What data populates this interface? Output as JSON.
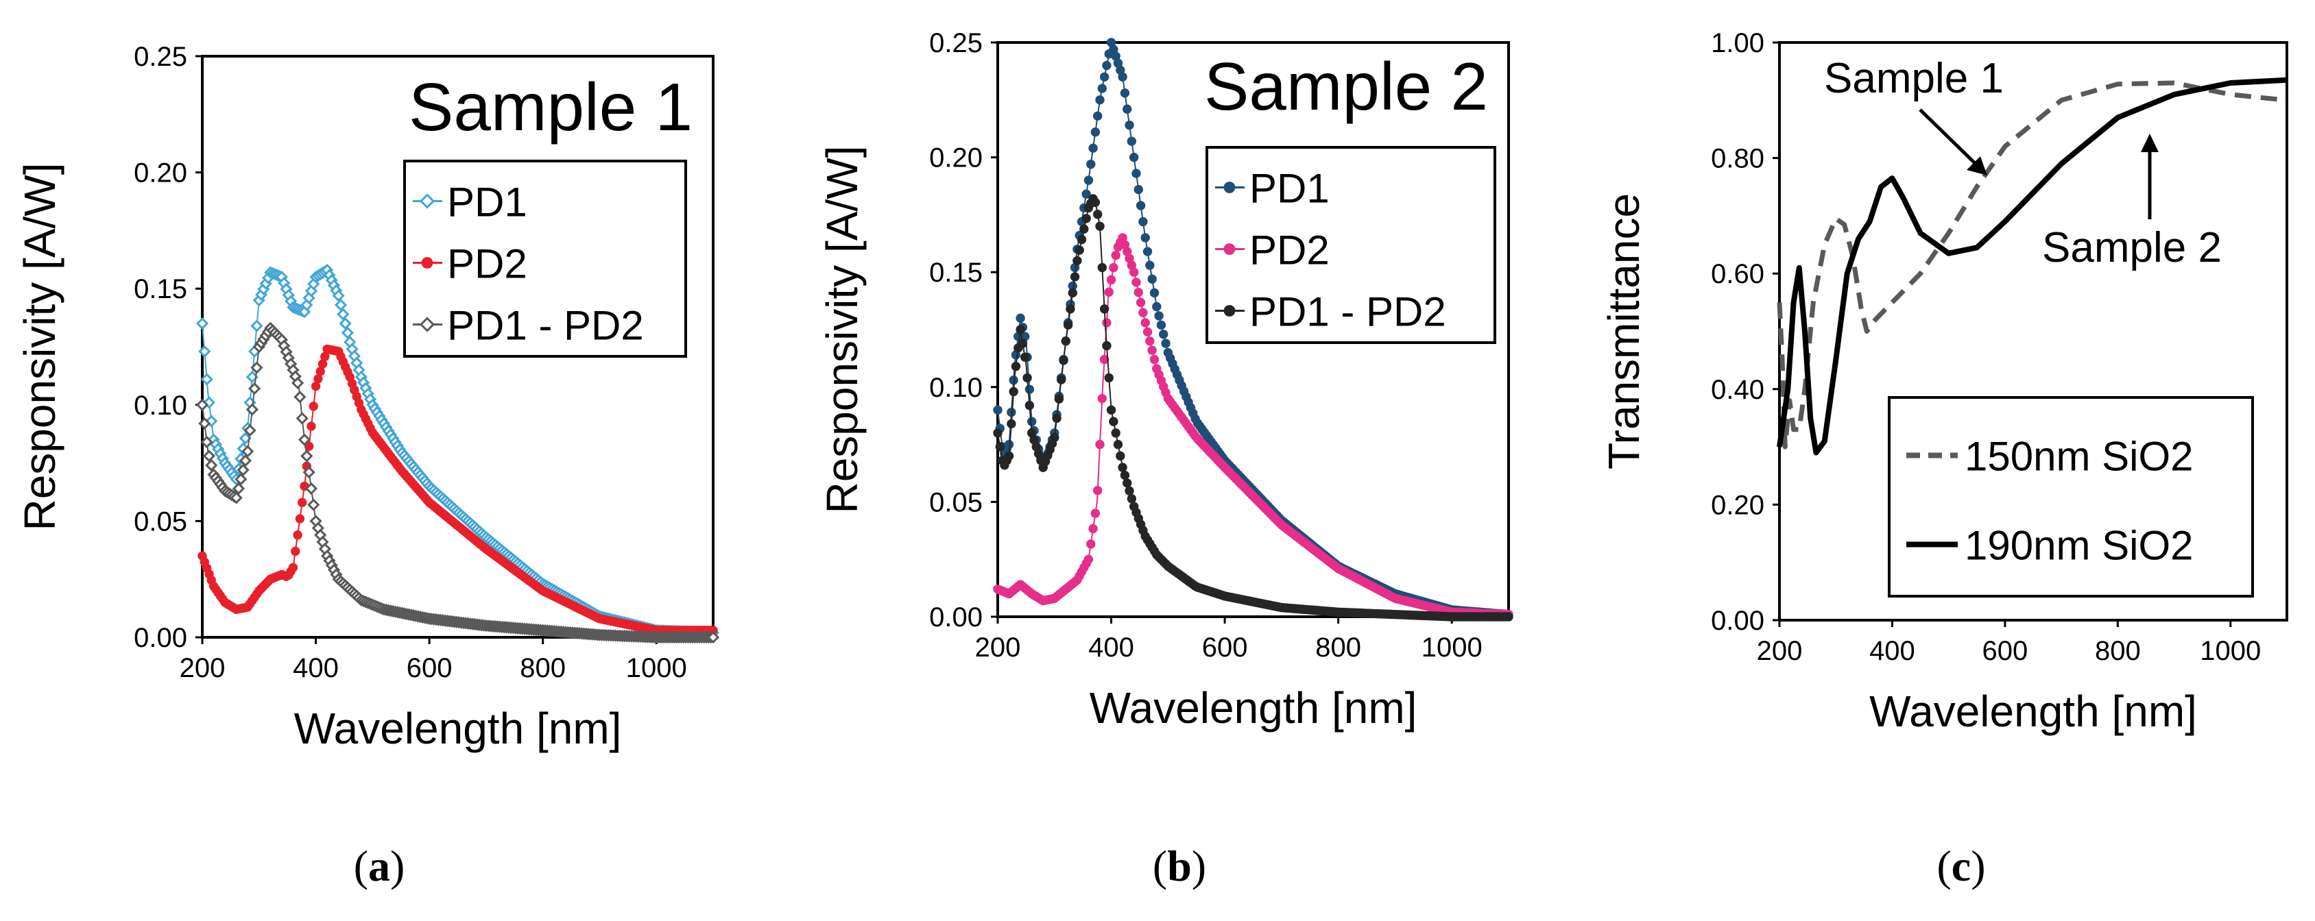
{
  "chart_data": [
    {
      "id": "a",
      "type": "scatter",
      "title": "Sample 1",
      "caption": {
        "open": "(",
        "letter": "a",
        "close": ")"
      },
      "xlabel": "Wavelength [nm]",
      "ylabel": "Responsivity [A/W]",
      "xlim": [
        200,
        1100
      ],
      "ylim": [
        0,
        0.25
      ],
      "xticks": [
        200,
        400,
        600,
        800,
        1000
      ],
      "yticks": [
        "0.00",
        "0.05",
        "0.10",
        "0.15",
        "0.20",
        "0.25"
      ],
      "legend_position": "top-right",
      "series": [
        {
          "name": "PD1",
          "color": "#41a5d9",
          "marker": "open-diamond",
          "points": [
            [
              200,
              0.135
            ],
            [
              210,
              0.105
            ],
            [
              220,
              0.085
            ],
            [
              240,
              0.075
            ],
            [
              260,
              0.068
            ],
            [
              280,
              0.09
            ],
            [
              300,
              0.145
            ],
            [
              320,
              0.157
            ],
            [
              340,
              0.155
            ],
            [
              360,
              0.142
            ],
            [
              380,
              0.14
            ],
            [
              400,
              0.155
            ],
            [
              420,
              0.158
            ],
            [
              440,
              0.147
            ],
            [
              460,
              0.127
            ],
            [
              480,
              0.112
            ],
            [
              500,
              0.1
            ],
            [
              550,
              0.08
            ],
            [
              600,
              0.065
            ],
            [
              700,
              0.043
            ],
            [
              800,
              0.023
            ],
            [
              900,
              0.009
            ],
            [
              1000,
              0.003
            ],
            [
              1100,
              0.002
            ]
          ]
        },
        {
          "name": "PD2",
          "color": "#e8202a",
          "marker": "filled-circle",
          "points": [
            [
              200,
              0.035
            ],
            [
              220,
              0.022
            ],
            [
              240,
              0.015
            ],
            [
              260,
              0.012
            ],
            [
              280,
              0.013
            ],
            [
              300,
              0.02
            ],
            [
              320,
              0.025
            ],
            [
              340,
              0.027
            ],
            [
              350,
              0.026
            ],
            [
              360,
              0.03
            ],
            [
              380,
              0.065
            ],
            [
              400,
              0.108
            ],
            [
              420,
              0.124
            ],
            [
              440,
              0.123
            ],
            [
              460,
              0.112
            ],
            [
              480,
              0.098
            ],
            [
              500,
              0.088
            ],
            [
              550,
              0.072
            ],
            [
              600,
              0.058
            ],
            [
              700,
              0.038
            ],
            [
              800,
              0.02
            ],
            [
              900,
              0.008
            ],
            [
              1000,
              0.003
            ],
            [
              1100,
              0.003
            ]
          ]
        },
        {
          "name": "PD1 - PD2",
          "color": "#595959",
          "marker": "open-diamond",
          "points": [
            [
              200,
              0.1
            ],
            [
              210,
              0.08
            ],
            [
              220,
              0.07
            ],
            [
              240,
              0.063
            ],
            [
              260,
              0.06
            ],
            [
              280,
              0.08
            ],
            [
              300,
              0.125
            ],
            [
              320,
              0.133
            ],
            [
              340,
              0.128
            ],
            [
              360,
              0.115
            ],
            [
              370,
              0.108
            ],
            [
              380,
              0.085
            ],
            [
              400,
              0.05
            ],
            [
              420,
              0.035
            ],
            [
              440,
              0.025
            ],
            [
              480,
              0.016
            ],
            [
              520,
              0.012
            ],
            [
              600,
              0.008
            ],
            [
              700,
              0.005
            ],
            [
              800,
              0.003
            ],
            [
              900,
              0.001
            ],
            [
              1000,
              0.0
            ],
            [
              1100,
              0.0
            ]
          ]
        }
      ]
    },
    {
      "id": "b",
      "type": "scatter",
      "title": "Sample 2",
      "caption": {
        "open": "(",
        "letter": "b",
        "close": ")"
      },
      "xlabel": "Wavelength [nm]",
      "ylabel": "Responsivity [A/W]",
      "xlim": [
        200,
        1100
      ],
      "ylim": [
        0,
        0.25
      ],
      "xticks": [
        200,
        400,
        600,
        800,
        1000
      ],
      "yticks": [
        "0.00",
        "0.05",
        "0.10",
        "0.15",
        "0.20",
        "0.25"
      ],
      "legend_position": "top-right",
      "series": [
        {
          "name": "PD1",
          "color": "#1f4e79",
          "marker": "filled-circle",
          "points": [
            [
              200,
              0.09
            ],
            [
              210,
              0.07
            ],
            [
              220,
              0.075
            ],
            [
              230,
              0.11
            ],
            [
              240,
              0.13
            ],
            [
              250,
              0.12
            ],
            [
              260,
              0.085
            ],
            [
              280,
              0.065
            ],
            [
              300,
              0.08
            ],
            [
              320,
              0.12
            ],
            [
              340,
              0.16
            ],
            [
              360,
              0.19
            ],
            [
              380,
              0.225
            ],
            [
              400,
              0.25
            ],
            [
              420,
              0.235
            ],
            [
              440,
              0.2
            ],
            [
              460,
              0.165
            ],
            [
              480,
              0.135
            ],
            [
              500,
              0.115
            ],
            [
              550,
              0.085
            ],
            [
              600,
              0.068
            ],
            [
              700,
              0.042
            ],
            [
              800,
              0.022
            ],
            [
              900,
              0.01
            ],
            [
              1000,
              0.003
            ],
            [
              1100,
              0.001
            ]
          ]
        },
        {
          "name": "PD2",
          "color": "#e62e8a",
          "marker": "filled-circle",
          "points": [
            [
              200,
              0.012
            ],
            [
              220,
              0.01
            ],
            [
              240,
              0.014
            ],
            [
              260,
              0.01
            ],
            [
              280,
              0.007
            ],
            [
              300,
              0.008
            ],
            [
              320,
              0.012
            ],
            [
              340,
              0.016
            ],
            [
              360,
              0.025
            ],
            [
              375,
              0.05
            ],
            [
              385,
              0.1
            ],
            [
              395,
              0.14
            ],
            [
              410,
              0.16
            ],
            [
              420,
              0.165
            ],
            [
              440,
              0.15
            ],
            [
              460,
              0.128
            ],
            [
              480,
              0.108
            ],
            [
              500,
              0.095
            ],
            [
              550,
              0.078
            ],
            [
              600,
              0.065
            ],
            [
              700,
              0.04
            ],
            [
              800,
              0.021
            ],
            [
              900,
              0.008
            ],
            [
              1000,
              0.002
            ],
            [
              1100,
              0.001
            ]
          ]
        },
        {
          "name": "PD1 - PD2",
          "color": "#262626",
          "marker": "filled-circle",
          "points": [
            [
              200,
              0.08
            ],
            [
              210,
              0.065
            ],
            [
              220,
              0.07
            ],
            [
              230,
              0.105
            ],
            [
              240,
              0.125
            ],
            [
              250,
              0.11
            ],
            [
              260,
              0.08
            ],
            [
              280,
              0.065
            ],
            [
              300,
              0.078
            ],
            [
              320,
              0.12
            ],
            [
              340,
              0.155
            ],
            [
              360,
              0.178
            ],
            [
              370,
              0.183
            ],
            [
              380,
              0.17
            ],
            [
              390,
              0.125
            ],
            [
              400,
              0.09
            ],
            [
              420,
              0.065
            ],
            [
              440,
              0.048
            ],
            [
              460,
              0.035
            ],
            [
              480,
              0.027
            ],
            [
              500,
              0.022
            ],
            [
              550,
              0.013
            ],
            [
              600,
              0.009
            ],
            [
              700,
              0.004
            ],
            [
              800,
              0.002
            ],
            [
              900,
              0.001
            ],
            [
              1000,
              0.0
            ],
            [
              1100,
              0.0
            ]
          ]
        }
      ]
    },
    {
      "id": "c",
      "type": "line",
      "caption": {
        "open": "(",
        "letter": "c",
        "close": ")"
      },
      "xlabel": "Wavelength [nm]",
      "ylabel": "Transmittance",
      "xlim": [
        200,
        1100
      ],
      "ylim": [
        0,
        1
      ],
      "xticks": [
        200,
        400,
        600,
        800,
        1000
      ],
      "yticks": [
        "0.00",
        "0.20",
        "0.40",
        "0.60",
        "0.80",
        "1.00"
      ],
      "legend_position": "bottom-left",
      "annotations": [
        "Sample 1",
        "Sample 2"
      ],
      "series": [
        {
          "name": "150nm SiO2",
          "color": "#595959",
          "style": "dashed",
          "points": [
            [
              200,
              0.55
            ],
            [
              205,
              0.45
            ],
            [
              210,
              0.3
            ],
            [
              218,
              0.38
            ],
            [
              225,
              0.33
            ],
            [
              235,
              0.33
            ],
            [
              245,
              0.4
            ],
            [
              260,
              0.55
            ],
            [
              280,
              0.65
            ],
            [
              300,
              0.695
            ],
            [
              315,
              0.685
            ],
            [
              330,
              0.63
            ],
            [
              345,
              0.54
            ],
            [
              355,
              0.5
            ],
            [
              370,
              0.52
            ],
            [
              400,
              0.55
            ],
            [
              450,
              0.6
            ],
            [
              500,
              0.67
            ],
            [
              550,
              0.75
            ],
            [
              600,
              0.82
            ],
            [
              700,
              0.9
            ],
            [
              800,
              0.928
            ],
            [
              900,
              0.93
            ],
            [
              1000,
              0.91
            ],
            [
              1100,
              0.9
            ]
          ]
        },
        {
          "name": "190nm SiO2",
          "color": "#000000",
          "style": "solid",
          "points": [
            [
              200,
              0.3
            ],
            [
              215,
              0.4
            ],
            [
              225,
              0.55
            ],
            [
              235,
              0.61
            ],
            [
              245,
              0.5
            ],
            [
              255,
              0.35
            ],
            [
              265,
              0.29
            ],
            [
              280,
              0.31
            ],
            [
              300,
              0.45
            ],
            [
              320,
              0.6
            ],
            [
              340,
              0.66
            ],
            [
              360,
              0.69
            ],
            [
              380,
              0.75
            ],
            [
              400,
              0.765
            ],
            [
              420,
              0.73
            ],
            [
              450,
              0.67
            ],
            [
              500,
              0.635
            ],
            [
              550,
              0.645
            ],
            [
              600,
              0.69
            ],
            [
              700,
              0.79
            ],
            [
              800,
              0.87
            ],
            [
              900,
              0.91
            ],
            [
              1000,
              0.93
            ],
            [
              1100,
              0.935
            ]
          ]
        }
      ]
    }
  ]
}
